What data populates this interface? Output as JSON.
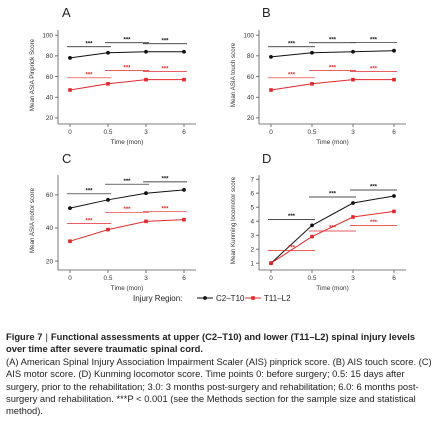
{
  "figure": {
    "legend_title": "Injury Region:",
    "series_names": [
      "C2–T10",
      "T11–L2"
    ],
    "colors": {
      "upper": "#111111",
      "lower": "#e0282c"
    }
  },
  "chart_data": [
    {
      "panel": "A",
      "type": "line",
      "ylabel": "Mean ASIA Pinprick Score",
      "xlabel": "Time (mon)",
      "x": [
        0,
        0.5,
        3,
        6
      ],
      "xticks": [
        "0",
        "0.5",
        "3",
        "6"
      ],
      "ylim": [
        18,
        105
      ],
      "yticks": [
        20,
        40,
        60,
        80,
        100
      ],
      "series": [
        {
          "name": "C2–T10",
          "values": [
            78,
            83,
            84,
            84
          ]
        },
        {
          "name": "T11–L2",
          "values": [
            47,
            53,
            57,
            57
          ]
        }
      ],
      "annotations": {
        "upper": [
          {
            "from": 0,
            "to": 0.5,
            "label": "***"
          },
          {
            "from": 0.5,
            "to": 3,
            "label": "***"
          },
          {
            "from": 3,
            "to": 6,
            "label": "***"
          }
        ],
        "lower": [
          {
            "from": 0,
            "to": 0.5,
            "label": "***"
          },
          {
            "from": 0.5,
            "to": 3,
            "label": "***"
          },
          {
            "from": 3,
            "to": 6,
            "label": "***"
          }
        ]
      }
    },
    {
      "panel": "B",
      "type": "line",
      "ylabel": "Mean ASIA touch score",
      "xlabel": "Time (mon)",
      "x": [
        0,
        0.5,
        3,
        6
      ],
      "xticks": [
        "0",
        "0.5",
        "3",
        "6"
      ],
      "ylim": [
        18,
        105
      ],
      "yticks": [
        20,
        40,
        60,
        80,
        100
      ],
      "series": [
        {
          "name": "C2–T10",
          "values": [
            79,
            83,
            84,
            85
          ]
        },
        {
          "name": "T11–L2",
          "values": [
            47,
            53,
            57,
            57
          ]
        }
      ],
      "annotations": {
        "upper": [
          {
            "from": 0,
            "to": 0.5,
            "label": "***"
          },
          {
            "from": 0.5,
            "to": 3,
            "label": "***"
          },
          {
            "from": 3,
            "to": 6,
            "label": "***"
          }
        ],
        "lower": [
          {
            "from": 0,
            "to": 0.5,
            "label": "***"
          },
          {
            "from": 0.5,
            "to": 3,
            "label": "***"
          },
          {
            "from": 3,
            "to": 6,
            "label": "***"
          }
        ]
      }
    },
    {
      "panel": "C",
      "type": "line",
      "ylabel": "Mean ASIA motor score",
      "xlabel": "Time (mon)",
      "x": [
        0,
        0.5,
        3,
        6
      ],
      "xticks": [
        "0",
        "0.5",
        "3",
        "6"
      ],
      "ylim": [
        17,
        72
      ],
      "yticks": [
        20,
        40,
        60
      ],
      "series": [
        {
          "name": "C2–T10",
          "values": [
            52,
            57,
            61,
            63
          ]
        },
        {
          "name": "T11–L2",
          "values": [
            32,
            39,
            44,
            45
          ]
        }
      ],
      "annotations": {
        "upper": [
          {
            "from": 0,
            "to": 0.5,
            "label": "***"
          },
          {
            "from": 0.5,
            "to": 3,
            "label": "***"
          },
          {
            "from": 3,
            "to": 6,
            "label": "***"
          }
        ],
        "lower": [
          {
            "from": 0,
            "to": 0.5,
            "label": "***"
          },
          {
            "from": 0.5,
            "to": 3,
            "label": "***"
          },
          {
            "from": 3,
            "to": 6,
            "label": "***"
          }
        ]
      }
    },
    {
      "panel": "D",
      "type": "line",
      "ylabel": "Mean Kunming locomotor score",
      "xlabel": "Time (mon)",
      "x": [
        0,
        0.5,
        3,
        6
      ],
      "xticks": [
        "0",
        "0.5",
        "3",
        "6"
      ],
      "ylim": [
        0.8,
        7.3
      ],
      "yticks": [
        1,
        2,
        3,
        4,
        5,
        6,
        7
      ],
      "series": [
        {
          "name": "C2–T10",
          "values": [
            1.0,
            3.7,
            5.3,
            5.8
          ]
        },
        {
          "name": "T11–L2",
          "values": [
            1.0,
            2.9,
            4.3,
            4.7
          ]
        }
      ],
      "annotations": {
        "upper": [
          {
            "from": 0,
            "to": 0.5,
            "label": "***"
          },
          {
            "from": 0.5,
            "to": 3,
            "label": "***"
          },
          {
            "from": 3,
            "to": 6,
            "label": "***"
          }
        ],
        "lower": [
          {
            "from": 0,
            "to": 0.5,
            "label": "***"
          },
          {
            "from": 0.5,
            "to": 3,
            "label": "***"
          },
          {
            "from": 3,
            "to": 6,
            "label": "***"
          }
        ]
      }
    }
  ],
  "caption": {
    "label": "Figure 7",
    "separator": "|",
    "title": "Functional assessments at upper (C2–T10) and lower (T11–L2) spinal injury levels over time after severe traumatic spinal cord.",
    "body": "(A) American Spinal Injury Association Impairment Scaler (AIS) pinprick score. (B) AIS touch score. (C) AIS motor score. (D) Kunming locomotor score. Time points 0: before surgery; 0.5: 15 days after surgery, prior to the rehabilitation; 3.0: 3 months post-surgery and rehabilitation; 6.0: 6 months post-surgery and rehabilitation. ***P < 0.001 (see the Methods section for the sample size and statistical method)."
  }
}
